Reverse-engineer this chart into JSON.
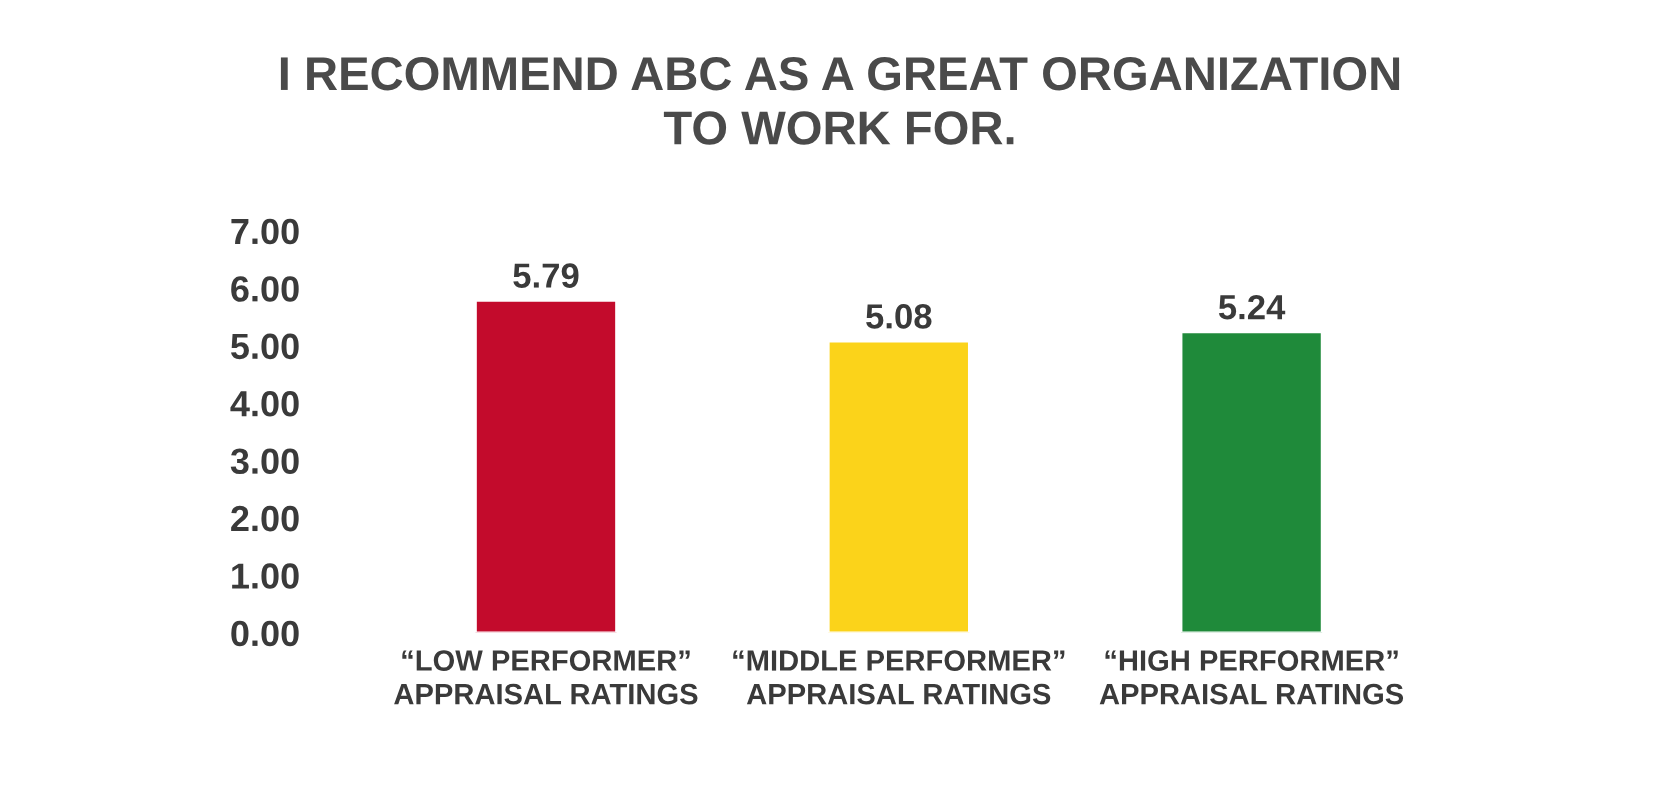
{
  "chart_data": {
    "type": "bar",
    "title": "I RECOMMEND ABC AS A GREAT ORGANIZATION\nTO WORK FOR.",
    "categories": [
      "“LOW PERFORMER”\nAPPRAISAL RATINGS",
      "“MIDDLE PERFORMER”\nAPPRAISAL RATINGS",
      "“HIGH PERFORMER”\nAPPRAISAL RATINGS"
    ],
    "values": [
      5.79,
      5.08,
      5.24
    ],
    "colors": [
      "#c30b2c",
      "#fbd31a",
      "#1f8a3a"
    ],
    "ylim": [
      0,
      7
    ],
    "yticks": [
      {
        "value": 0,
        "label": "0.00"
      },
      {
        "value": 1,
        "label": "1.00"
      },
      {
        "value": 2,
        "label": "2.00"
      },
      {
        "value": 3,
        "label": "3.00"
      },
      {
        "value": 4,
        "label": "4.00"
      },
      {
        "value": 5,
        "label": "5.00"
      },
      {
        "value": 6,
        "label": "6.00"
      },
      {
        "value": 7,
        "label": "7.00"
      }
    ],
    "data_labels": true,
    "grid": false,
    "legend": false
  }
}
